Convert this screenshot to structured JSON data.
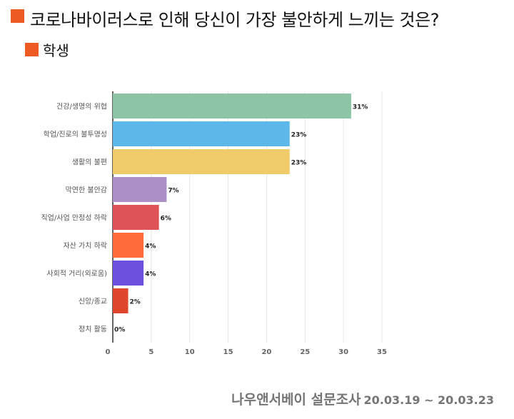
{
  "title": "코로나바이러스로 인해 당신이 가장 불안하게 느끼는 것은?",
  "subtitle": "학생",
  "footer": {
    "source": "나우앤서베이 설문조사",
    "dates": "20.03.19 ~ 20.03.23"
  },
  "colors": {
    "accent": "#EE5A24",
    "grid": "#e6e6e6",
    "axis": "#333333"
  },
  "chart_data": {
    "type": "bar",
    "orientation": "horizontal",
    "categories": [
      "건강/생명의 위협",
      "학업/진로의 불투명성",
      "생활의 불편",
      "막연한 불안감",
      "직업/사업 안정성 하락",
      "자산 가치 하락",
      "사회적 거리(외로움)",
      "신앙/종교",
      "정치 활동"
    ],
    "values": [
      31,
      23,
      23,
      7,
      6,
      4,
      4,
      2,
      0
    ],
    "value_labels": [
      "31%",
      "23%",
      "23%",
      "7%",
      "6%",
      "4%",
      "4%",
      "2%",
      "0%"
    ],
    "colors": [
      "#8DC4A6",
      "#5DB7E8",
      "#F0CB69",
      "#AB8FC7",
      "#DE5358",
      "#FF6B3B",
      "#6C4FDC",
      "#E0462B",
      "#888888"
    ],
    "xlim": [
      0,
      35
    ],
    "xticks": [
      0,
      5,
      10,
      15,
      20,
      25,
      30,
      35
    ],
    "grid": true,
    "xlabel": "",
    "ylabel": ""
  }
}
